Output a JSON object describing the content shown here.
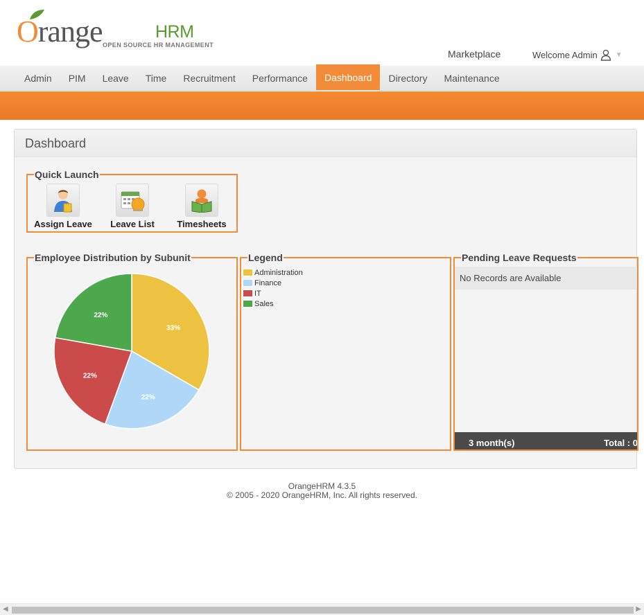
{
  "header": {
    "logo_letter": "O",
    "logo_rest": "range",
    "logo_suffix": "HRM",
    "logo_tagline": "OPEN SOURCE HR MANAGEMENT",
    "marketplace": "Marketplace",
    "welcome": "Welcome Admin",
    "user_icon": "user-icon",
    "caret_icon": "caret-down-icon"
  },
  "menu": {
    "items": [
      {
        "label": "Admin",
        "active": false
      },
      {
        "label": "PIM",
        "active": false
      },
      {
        "label": "Leave",
        "active": false
      },
      {
        "label": "Time",
        "active": false
      },
      {
        "label": "Recruitment",
        "active": false
      },
      {
        "label": "Performance",
        "active": false
      },
      {
        "label": "Dashboard",
        "active": true
      },
      {
        "label": "Directory",
        "active": false
      },
      {
        "label": "Maintenance",
        "active": false
      }
    ]
  },
  "dashboard": {
    "title": "Dashboard",
    "quick_launch": {
      "title": "Quick Launch",
      "items": [
        {
          "label": "Assign Leave",
          "icon": "assign-leave-icon"
        },
        {
          "label": "Leave List",
          "icon": "leave-list-icon"
        },
        {
          "label": "Timesheets",
          "icon": "timesheets-icon"
        }
      ]
    },
    "distribution": {
      "title": "Employee Distribution by Subunit"
    },
    "legend": {
      "title": "Legend"
    },
    "pending": {
      "title": "Pending Leave Requests",
      "empty": "No Records are Available",
      "period": "3 month(s)",
      "total": "Total : 0"
    }
  },
  "chart_data": {
    "type": "pie",
    "categories": [
      "Administration",
      "Finance",
      "IT",
      "Sales"
    ],
    "values": [
      33,
      22,
      22,
      22
    ],
    "labels": [
      "33%",
      "22%",
      "22%",
      "22%"
    ],
    "colors": [
      "#edc240",
      "#afd8f8",
      "#cb4b4b",
      "#4da74d"
    ],
    "title": "Employee Distribution by Subunit",
    "legend": "right"
  },
  "footer": {
    "version": "OrangeHRM 4.3.5",
    "copyright": "© 2005 - 2020 OrangeHRM, Inc. All rights reserved."
  }
}
